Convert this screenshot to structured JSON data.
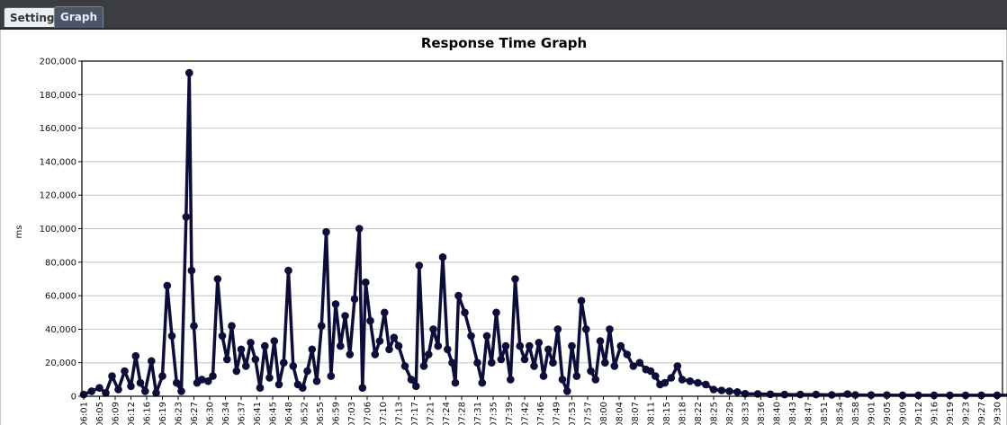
{
  "tabs": [
    {
      "label": "Settings"
    },
    {
      "label": "Graph"
    }
  ],
  "chart_data": {
    "type": "line",
    "title": "Response Time Graph",
    "ylabel": "ms",
    "xlabel": "",
    "ylim": [
      0,
      200000
    ],
    "y_ticks": [
      "0",
      "20,000",
      "40,000",
      "60,000",
      "80,000",
      "100,000",
      "120,000",
      "140,000",
      "160,000",
      "180,000",
      "200,000"
    ],
    "x_tick_labels": [
      "06:01",
      "06:05",
      "06:09",
      "06:12",
      "06:16",
      "06:19",
      "06:23",
      "06:27",
      "06:30",
      "06:34",
      "06:37",
      "06:41",
      "06:45",
      "06:48",
      "06:52",
      "06:55",
      "06:59",
      "07:03",
      "07:06",
      "07:10",
      "07:13",
      "07:17",
      "07:21",
      "07:24",
      "07:28",
      "07:31",
      "07:35",
      "07:39",
      "07:42",
      "07:46",
      "07:49",
      "07:53",
      "07:57",
      "08:00",
      "08:04",
      "08:07",
      "08:11",
      "08:15",
      "08:18",
      "08:22",
      "08:25",
      "08:29",
      "08:33",
      "08:36",
      "08:40",
      "08:43",
      "08:47",
      "08:51",
      "08:54",
      "08:58",
      "09:01",
      "09:05",
      "09:09",
      "09:12",
      "09:16",
      "09:19",
      "09:23",
      "09:27",
      "09:30"
    ],
    "grid": true,
    "colors": {
      "line": "#0d0d3a"
    },
    "series": [
      {
        "values": [
          [
            0.0,
            1000
          ],
          [
            0.5,
            3000
          ],
          [
            1.0,
            5000
          ],
          [
            1.4,
            2000
          ],
          [
            1.8,
            12000
          ],
          [
            2.2,
            4000
          ],
          [
            2.6,
            15000
          ],
          [
            3.0,
            6000
          ],
          [
            3.3,
            24000
          ],
          [
            3.6,
            8000
          ],
          [
            3.9,
            3000
          ],
          [
            4.3,
            21000
          ],
          [
            4.6,
            2000
          ],
          [
            5.0,
            12000
          ],
          [
            5.3,
            66000
          ],
          [
            5.6,
            36000
          ],
          [
            5.9,
            8000
          ],
          [
            6.2,
            3000
          ],
          [
            6.5,
            107000
          ],
          [
            6.7,
            193000
          ],
          [
            6.85,
            75000
          ],
          [
            7.0,
            42000
          ],
          [
            7.2,
            8000
          ],
          [
            7.5,
            10000
          ],
          [
            7.9,
            9000
          ],
          [
            8.2,
            12000
          ],
          [
            8.5,
            70000
          ],
          [
            8.8,
            36000
          ],
          [
            9.1,
            22000
          ],
          [
            9.4,
            42000
          ],
          [
            9.7,
            15000
          ],
          [
            10.0,
            28000
          ],
          [
            10.3,
            18000
          ],
          [
            10.6,
            32000
          ],
          [
            10.9,
            22000
          ],
          [
            11.2,
            5000
          ],
          [
            11.5,
            30000
          ],
          [
            11.8,
            11000
          ],
          [
            12.1,
            33000
          ],
          [
            12.4,
            7000
          ],
          [
            12.7,
            20000
          ],
          [
            13.0,
            75000
          ],
          [
            13.3,
            18000
          ],
          [
            13.6,
            7000
          ],
          [
            13.9,
            5000
          ],
          [
            14.2,
            15000
          ],
          [
            14.5,
            28000
          ],
          [
            14.8,
            9000
          ],
          [
            15.1,
            42000
          ],
          [
            15.4,
            98000
          ],
          [
            15.7,
            12000
          ],
          [
            16.0,
            55000
          ],
          [
            16.3,
            30000
          ],
          [
            16.6,
            48000
          ],
          [
            16.9,
            25000
          ],
          [
            17.2,
            58000
          ],
          [
            17.5,
            100000
          ],
          [
            17.7,
            5000
          ],
          [
            17.9,
            68000
          ],
          [
            18.2,
            45000
          ],
          [
            18.5,
            25000
          ],
          [
            18.8,
            33000
          ],
          [
            19.1,
            50000
          ],
          [
            19.4,
            28000
          ],
          [
            19.7,
            35000
          ],
          [
            20.0,
            30000
          ],
          [
            20.4,
            18000
          ],
          [
            20.8,
            10000
          ],
          [
            21.1,
            6000
          ],
          [
            21.3,
            78000
          ],
          [
            21.6,
            18000
          ],
          [
            21.9,
            25000
          ],
          [
            22.2,
            40000
          ],
          [
            22.5,
            30000
          ],
          [
            22.8,
            83000
          ],
          [
            23.1,
            28000
          ],
          [
            23.4,
            20000
          ],
          [
            23.6,
            8000
          ],
          [
            23.8,
            60000
          ],
          [
            24.2,
            50000
          ],
          [
            24.6,
            36000
          ],
          [
            25.0,
            20000
          ],
          [
            25.3,
            8000
          ],
          [
            25.6,
            36000
          ],
          [
            25.9,
            20000
          ],
          [
            26.2,
            50000
          ],
          [
            26.5,
            22000
          ],
          [
            26.8,
            30000
          ],
          [
            27.1,
            10000
          ],
          [
            27.4,
            70000
          ],
          [
            27.7,
            30000
          ],
          [
            28.0,
            22000
          ],
          [
            28.3,
            30000
          ],
          [
            28.6,
            18000
          ],
          [
            28.9,
            32000
          ],
          [
            29.2,
            12000
          ],
          [
            29.5,
            28000
          ],
          [
            29.8,
            20000
          ],
          [
            30.1,
            40000
          ],
          [
            30.4,
            10000
          ],
          [
            30.7,
            3000
          ],
          [
            31.0,
            30000
          ],
          [
            31.3,
            12000
          ],
          [
            31.6,
            57000
          ],
          [
            31.9,
            40000
          ],
          [
            32.2,
            15000
          ],
          [
            32.5,
            10000
          ],
          [
            32.8,
            33000
          ],
          [
            33.1,
            20000
          ],
          [
            33.4,
            40000
          ],
          [
            33.7,
            18000
          ],
          [
            34.1,
            30000
          ],
          [
            34.5,
            25000
          ],
          [
            34.9,
            18000
          ],
          [
            35.3,
            20000
          ],
          [
            35.7,
            16000
          ],
          [
            36.0,
            15000
          ],
          [
            36.3,
            12000
          ],
          [
            36.6,
            7000
          ],
          [
            36.9,
            8000
          ],
          [
            37.3,
            11000
          ],
          [
            37.7,
            18000
          ],
          [
            38.0,
            10000
          ],
          [
            38.5,
            9000
          ],
          [
            39.0,
            8000
          ],
          [
            39.5,
            7000
          ],
          [
            40.0,
            4000
          ],
          [
            40.5,
            3500
          ],
          [
            41.0,
            3000
          ],
          [
            41.5,
            2500
          ],
          [
            42.0,
            1500
          ],
          [
            42.8,
            1400
          ],
          [
            43.6,
            1200
          ],
          [
            44.5,
            1000
          ],
          [
            45.5,
            1000
          ],
          [
            46.5,
            1000
          ],
          [
            47.5,
            800
          ],
          [
            48.5,
            1300
          ],
          [
            49.0,
            800
          ],
          [
            50.0,
            700
          ],
          [
            51.0,
            700
          ],
          [
            52.0,
            600
          ],
          [
            53.0,
            600
          ],
          [
            54.0,
            600
          ],
          [
            55.0,
            600
          ],
          [
            56.0,
            600
          ],
          [
            57.0,
            600
          ],
          [
            58.0,
            600
          ],
          [
            59.0,
            600
          ],
          [
            60.0,
            600
          ],
          [
            61.0,
            600
          ],
          [
            62.0,
            600
          ],
          [
            63.0,
            600
          ],
          [
            64.0,
            600
          ],
          [
            65.0,
            600
          ],
          [
            66.0,
            600
          ],
          [
            67.0,
            600
          ],
          [
            68.0,
            600
          ],
          [
            69.0,
            600
          ],
          [
            70.0,
            600
          ],
          [
            71.0,
            600
          ],
          [
            72.0,
            600
          ],
          [
            73.0,
            600
          ],
          [
            74.0,
            600
          ],
          [
            75.0,
            600
          ],
          [
            76.0,
            600
          ],
          [
            77.0,
            600
          ],
          [
            78.0,
            600
          ],
          [
            79.0,
            600
          ],
          [
            80.0,
            600
          ],
          [
            81.0,
            600
          ],
          [
            82.0,
            600
          ],
          [
            83.0,
            600
          ],
          [
            84.0,
            600
          ],
          [
            85.0,
            600
          ],
          [
            86.0,
            600
          ]
        ]
      }
    ]
  }
}
